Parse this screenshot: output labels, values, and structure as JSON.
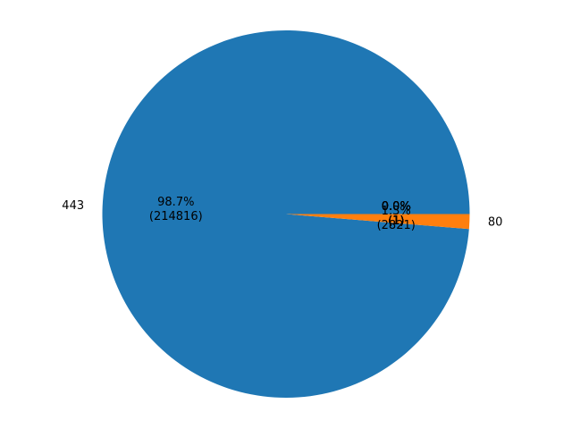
{
  "chart_data": {
    "type": "pie",
    "title": "",
    "slices": [
      {
        "label": "443",
        "value": 214816,
        "pct": "98.7%",
        "count": "(214816)",
        "color": "#1f77b4"
      },
      {
        "label": "80",
        "value": 2821,
        "pct": "1.3%",
        "count": "(2821)",
        "color": "#ff7f0e"
      },
      {
        "label": "",
        "value": 1,
        "pct": "0.0%",
        "count": "(1)",
        "color": "#2ca02c"
      },
      {
        "label": "",
        "value": 1,
        "pct": "0.0%",
        "count": "(1)",
        "color": "#d62728"
      },
      {
        "label": "",
        "value": 1,
        "pct": "0.0%",
        "count": "(1)",
        "color": "#9467bd"
      },
      {
        "label": "",
        "value": 1,
        "pct": "0.0%",
        "count": "(1)",
        "color": "#8c564b"
      },
      {
        "label": "",
        "value": 1,
        "pct": "0.0%",
        "count": "(1)",
        "color": "#e377c2"
      },
      {
        "label": "",
        "value": 1,
        "pct": "0.0%",
        "count": "(1)",
        "color": "#7f7f7f"
      },
      {
        "label": "",
        "value": 1,
        "pct": "0.0%",
        "count": "(1)",
        "color": "#bcbd22"
      },
      {
        "label": "",
        "value": 1,
        "pct": "0.0%",
        "count": "(1)",
        "color": "#17becf"
      }
    ]
  }
}
